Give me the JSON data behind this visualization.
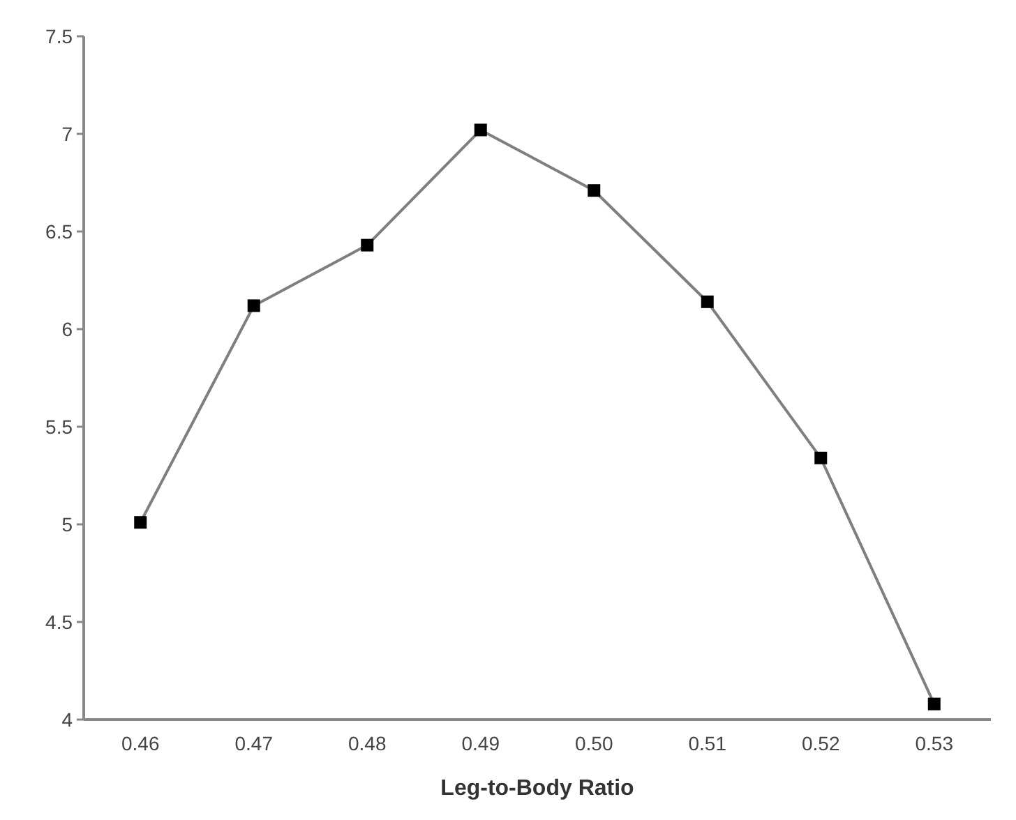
{
  "chart_data": {
    "type": "line",
    "xlabel": "Leg-to-Body Ratio",
    "x": [
      0.46,
      0.47,
      0.48,
      0.49,
      0.5,
      0.51,
      0.52,
      0.53
    ],
    "series": [
      {
        "color": "#7f7f7f",
        "values": [
          5.01,
          6.12,
          6.43,
          7.02,
          6.71,
          6.14,
          5.34,
          4.08
        ]
      }
    ],
    "xlim": [
      0.455,
      0.535
    ],
    "xticks": [
      {
        "value": 0.46,
        "label": "0.46"
      },
      {
        "value": 0.47,
        "label": "0.47"
      },
      {
        "value": 0.48,
        "label": "0.48"
      },
      {
        "value": 0.49,
        "label": "0.49"
      },
      {
        "value": 0.5,
        "label": "0.50"
      },
      {
        "value": 0.51,
        "label": "0.51"
      },
      {
        "value": 0.52,
        "label": "0.52"
      },
      {
        "value": 0.53,
        "label": "0.53"
      }
    ],
    "ylim": [
      4,
      7.5
    ],
    "yticks": [
      4,
      4.5,
      5,
      5.5,
      6,
      6.5,
      7,
      7.5
    ],
    "marker": "square",
    "line_style": "solid",
    "grid": false
  }
}
